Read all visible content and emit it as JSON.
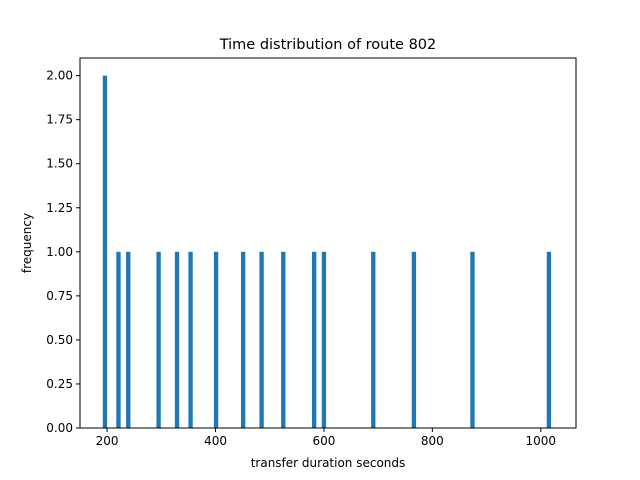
{
  "chart_data": {
    "type": "bar",
    "title": "Time distribution of route 802",
    "xlabel": "transfer duration seconds",
    "ylabel": "frequency",
    "xlim": [
      150,
      1065
    ],
    "ylim": [
      0,
      2.1
    ],
    "xticks": [
      {
        "value": 200,
        "label": "200"
      },
      {
        "value": 400,
        "label": "400"
      },
      {
        "value": 600,
        "label": "600"
      },
      {
        "value": 800,
        "label": "800"
      },
      {
        "value": 1000,
        "label": "1000"
      }
    ],
    "yticks": [
      {
        "value": 0,
        "label": "0.00"
      },
      {
        "value": 0.25,
        "label": "0.25"
      },
      {
        "value": 0.5,
        "label": "0.50"
      },
      {
        "value": 0.75,
        "label": "0.75"
      },
      {
        "value": 1,
        "label": "1.00"
      },
      {
        "value": 1.25,
        "label": "1.25"
      },
      {
        "value": 1.5,
        "label": "1.50"
      },
      {
        "value": 1.75,
        "label": "1.75"
      },
      {
        "value": 2,
        "label": "2.00"
      }
    ],
    "bin_width": 8,
    "bar_color": "#1f77b4",
    "bins": [
      {
        "x": 196,
        "count": 2
      },
      {
        "x": 221,
        "count": 1
      },
      {
        "x": 239,
        "count": 1
      },
      {
        "x": 295,
        "count": 1
      },
      {
        "x": 329,
        "count": 1
      },
      {
        "x": 354,
        "count": 1
      },
      {
        "x": 401,
        "count": 1
      },
      {
        "x": 451,
        "count": 1
      },
      {
        "x": 485,
        "count": 1
      },
      {
        "x": 525,
        "count": 1
      },
      {
        "x": 582,
        "count": 1
      },
      {
        "x": 600,
        "count": 1
      },
      {
        "x": 691,
        "count": 1
      },
      {
        "x": 766,
        "count": 1
      },
      {
        "x": 874,
        "count": 1
      },
      {
        "x": 1015,
        "count": 1
      }
    ],
    "grid": false,
    "legend": "none"
  }
}
